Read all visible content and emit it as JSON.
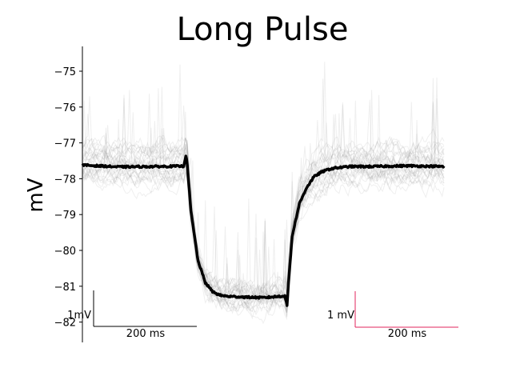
{
  "chart_data": {
    "type": "line",
    "title": "Long Pulse",
    "ylabel": "mV",
    "xlabel": "",
    "ylim": [
      -82.5,
      -73.4
    ],
    "xlim": [
      0,
      1000
    ],
    "yticks": [
      -75,
      -76,
      -77,
      -78,
      -79,
      -80,
      -81,
      -82
    ],
    "grid": false,
    "mean_trace": {
      "color": "#000000",
      "baseline": -77.65,
      "pulse_start": 290,
      "pulse_end": 570,
      "plateau": -81.3,
      "x": [
        0,
        100,
        200,
        280,
        286,
        290,
        300,
        320,
        340,
        360,
        380,
        400,
        440,
        500,
        560,
        566,
        570,
        580,
        600,
        620,
        640,
        660,
        680,
        700,
        740,
        800,
        900,
        1000
      ],
      "y": [
        -77.62,
        -77.67,
        -77.66,
        -77.65,
        -77.35,
        -77.6,
        -78.9,
        -80.3,
        -80.9,
        -81.15,
        -81.25,
        -81.28,
        -81.3,
        -81.32,
        -81.27,
        -81.55,
        -80.9,
        -79.6,
        -78.7,
        -78.25,
        -77.95,
        -77.82,
        -77.74,
        -77.7,
        -77.66,
        -77.66,
        -77.64,
        -77.66
      ]
    },
    "trials": {
      "count": 30,
      "color": "#9a9a9a"
    },
    "scalebars": [
      {
        "name": "black",
        "color": "#000000",
        "y_label": "1mV",
        "x_label": "200 ms"
      },
      {
        "name": "red",
        "color": "#e0245e",
        "y_label": "1 mV",
        "x_label": "200 ms"
      }
    ]
  }
}
